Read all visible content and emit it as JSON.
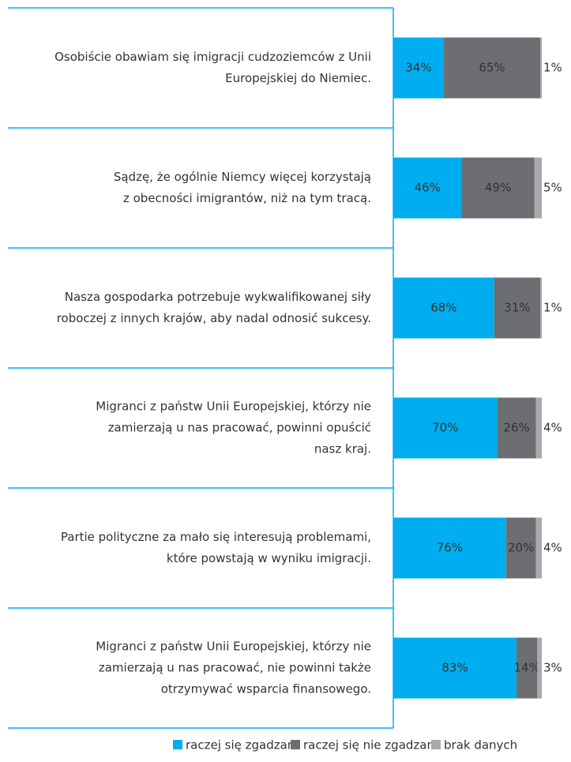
{
  "chart_data": {
    "type": "stacked_bar_horizontal",
    "categories": [
      [
        "Osobiście obawiam się imigracji cudzoziemców z Unii",
        "Europejskiej do Niemiec."
      ],
      [
        "Sądzę, że ogólnie Niemcy więcej korzystają",
        "z obecności imigrantów, niż na tym tracą."
      ],
      [
        "Nasza gospodarka potrzebuje wykwalifikowanej siły",
        "roboczej z innych krajów, aby nadal odnosić sukcesy."
      ],
      [
        "Migranci z państw Unii Europejskiej, którzy nie",
        "zamierzają u nas pracować, powinni opuścić",
        "nasz kraj."
      ],
      [
        "Partie polityczne za mało się interesują problemami,",
        "które powstają w wyniku imigracji."
      ],
      [
        "Migranci z państw Unii Europejskiej, którzy nie",
        "zamierzają u nas pracować, nie powinni także",
        "otrzymywać wsparcia finansowego."
      ]
    ],
    "series": [
      {
        "name": "raczej się zgadzam",
        "color": "#00aeef",
        "values": [
          34,
          46,
          68,
          70,
          76,
          83
        ],
        "value_labels": [
          "34%",
          "46%",
          "68%",
          "70%",
          "76%",
          "83%"
        ]
      },
      {
        "name": "raczej się nie zgadzam",
        "color": "#6d6e71",
        "values": [
          65,
          49,
          31,
          26,
          20,
          14
        ],
        "value_labels": [
          "65%",
          "49%",
          "31%",
          "26%",
          "20%",
          "14%"
        ]
      },
      {
        "name": "brak danych",
        "color": "#a7a9ac",
        "values": [
          1,
          5,
          1,
          4,
          4,
          3
        ],
        "value_labels": [
          "1%",
          "5%",
          "1%",
          "4%",
          "4%",
          "3%"
        ]
      }
    ],
    "xlim": [
      0,
      100
    ]
  }
}
